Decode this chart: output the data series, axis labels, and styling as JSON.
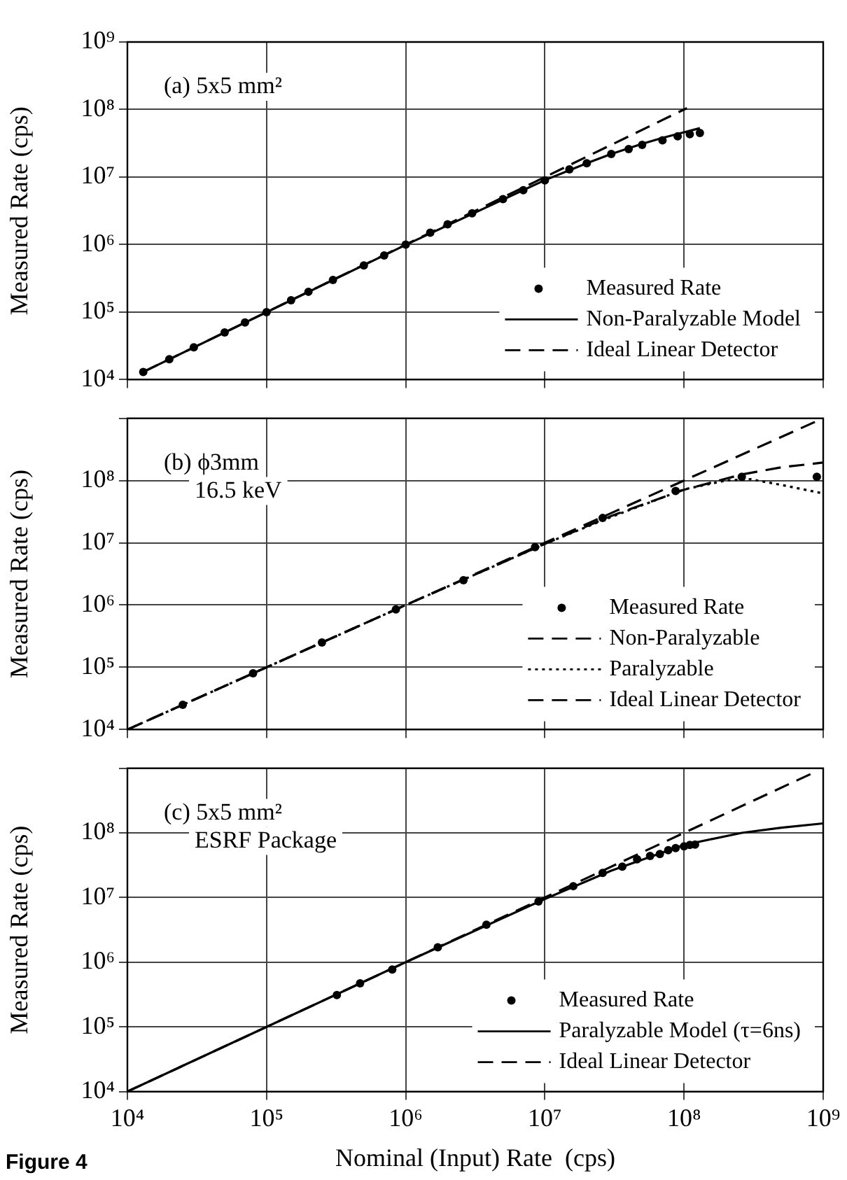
{
  "chart_data": [
    {
      "type": "line",
      "ylabel": "Measured Rate (cps)",
      "annotations": [
        "(a) 5x5 mm²"
      ],
      "log": "xy",
      "grid": true,
      "legend": "bottom right",
      "tick_labels": "y",
      "xlim": [
        10000,
        1000000000
      ],
      "xticks": [
        {
          "value": 10000,
          "label": null
        },
        {
          "value": 100000,
          "label": null
        },
        {
          "value": 1000000,
          "label": null
        },
        {
          "value": 10000000,
          "label": null
        },
        {
          "value": 100000000,
          "label": null
        },
        {
          "value": 1000000000,
          "label": null
        }
      ],
      "ylim": [
        10000,
        1000000000
      ],
      "yticks": [
        {
          "value": 10000,
          "label": "10⁴"
        },
        {
          "value": 100000,
          "label": "10⁵"
        },
        {
          "value": 1000000,
          "label": "10⁶"
        },
        {
          "value": 10000000,
          "label": "10⁷"
        },
        {
          "value": 100000000,
          "label": "10⁸"
        },
        {
          "value": 1000000000,
          "label": "10⁹"
        }
      ],
      "series": [
        {
          "name": "Measured Rate",
          "type": "scatter",
          "marker": "circle",
          "color": "#000000",
          "x": [
            13000,
            20000,
            30000,
            50000,
            70000,
            100000,
            150000,
            200000,
            300000,
            500000,
            700000,
            1000000,
            1500000,
            2000000,
            3000000,
            5000000,
            7000000,
            10000000,
            15000000,
            20000000,
            30000000,
            40000000,
            50000000,
            70000000,
            90000000,
            110000000,
            130000000
          ],
          "values": [
            13000,
            20000,
            30000,
            50000,
            70000,
            100000,
            150000,
            200000,
            300000,
            490000,
            690000,
            1000000,
            1500000,
            2000000,
            2900000,
            4700000,
            6400000,
            8900000,
            13000000,
            16000000,
            22000000,
            26000000,
            30000000,
            35000000,
            40000000,
            43000000,
            45000000
          ]
        },
        {
          "name": "Non-Paralyzable Model",
          "marker": "none",
          "line_style": "solid",
          "color": "#000000",
          "x": [
            13000,
            1000000,
            10000000,
            20000000,
            30000000,
            50000000,
            70000000,
            100000000,
            130000000
          ],
          "values": [
            13000,
            990000,
            9000000,
            16000000,
            22000000,
            31000000,
            38000000,
            46000000,
            53000000
          ]
        },
        {
          "name": "Ideal Linear Detector",
          "marker": "none",
          "line_style": "dashed",
          "color": "#000000",
          "x": [
            13000,
            105000000
          ],
          "values": [
            13000,
            105000000
          ]
        }
      ]
    },
    {
      "type": "line",
      "ylabel": "Measured Rate (cps)",
      "annotations": [
        "(b) ϕ3mm",
        "16.5 keV"
      ],
      "log": "xy",
      "grid": true,
      "legend": "bottom right",
      "tick_labels": "y",
      "xlim": [
        10000,
        1000000000
      ],
      "xticks": [
        {
          "value": 10000,
          "label": null
        },
        {
          "value": 100000,
          "label": null
        },
        {
          "value": 1000000,
          "label": null
        },
        {
          "value": 10000000,
          "label": null
        },
        {
          "value": 100000000,
          "label": null
        },
        {
          "value": 1000000000,
          "label": null
        }
      ],
      "ylim": [
        10000,
        1000000000
      ],
      "yticks": [
        {
          "value": 10000,
          "label": "10⁴"
        },
        {
          "value": 100000,
          "label": "10⁵"
        },
        {
          "value": 1000000,
          "label": "10⁶"
        },
        {
          "value": 10000000,
          "label": "10⁷"
        },
        {
          "value": 100000000,
          "label": "10⁸"
        },
        {
          "value": 1000000000,
          "label": null
        }
      ],
      "series": [
        {
          "name": "Measured Rate",
          "type": "scatter",
          "marker": "circle",
          "color": "#000000",
          "x": [
            25000,
            80000,
            250000,
            850000,
            2600000,
            8500000,
            26000000,
            87000000,
            260000000,
            900000000
          ],
          "values": [
            25000,
            80000,
            250000,
            850000,
            2500000,
            8500000,
            25000000,
            68000000,
            115000000,
            115000000
          ]
        },
        {
          "name": "Non-Paralyzable",
          "marker": "none",
          "line_style": "dashed",
          "color": "#000000",
          "x": [
            10000,
            100000,
            1000000,
            10000000,
            30000000,
            100000000,
            260000000,
            500000000,
            1000000000
          ],
          "values": [
            10000,
            100000,
            1000000,
            9600000,
            27000000,
            71000000,
            125000000,
            163000000,
            194000000
          ]
        },
        {
          "name": "Paralyzable",
          "marker": "none",
          "line_style": "dotted",
          "color": "#000000",
          "x": [
            10000,
            100000,
            1000000,
            10000000,
            30000000,
            100000000,
            200000000,
            300000000,
            500000000,
            1000000000
          ],
          "values": [
            10000,
            100000,
            1000000,
            9600000,
            26000000,
            72000000,
            100000000,
            105000000,
            85000000,
            62000000
          ]
        },
        {
          "name": "Ideal Linear Detector",
          "marker": "none",
          "line_style": "dashed",
          "color": "#000000",
          "x": [
            10000,
            900000000
          ],
          "values": [
            10000,
            900000000
          ]
        }
      ]
    },
    {
      "type": "line",
      "xlabel": "Nominal (Input) Rate  (cps)",
      "ylabel": "Measured Rate (cps)",
      "annotations": [
        "(c) 5x5 mm²",
        "ESRF Package",
        "Figure 4"
      ],
      "log": "xy",
      "grid": true,
      "legend": "bottom right",
      "xlim": [
        10000,
        1000000000
      ],
      "xticks": [
        {
          "value": 10000,
          "label": "10⁴"
        },
        {
          "value": 100000,
          "label": "10⁵"
        },
        {
          "value": 1000000,
          "label": "10⁶"
        },
        {
          "value": 10000000,
          "label": "10⁷"
        },
        {
          "value": 100000000,
          "label": "10⁸"
        },
        {
          "value": 1000000000,
          "label": "10⁹"
        }
      ],
      "ylim": [
        10000,
        1000000000
      ],
      "yticks": [
        {
          "value": 10000,
          "label": "10⁴"
        },
        {
          "value": 100000,
          "label": "10⁵"
        },
        {
          "value": 1000000,
          "label": "10⁶"
        },
        {
          "value": 10000000,
          "label": "10⁷"
        },
        {
          "value": 100000000,
          "label": "10⁸"
        },
        {
          "value": 1000000000,
          "label": null
        }
      ],
      "series": [
        {
          "name": "Measured Rate",
          "type": "scatter",
          "marker": "circle",
          "color": "#000000",
          "x": [
            320000,
            470000,
            800000,
            1700000,
            3800000,
            9000000,
            16000000,
            26000000,
            36000000,
            46000000,
            57000000,
            67000000,
            77000000,
            87000000,
            100000000,
            110000000,
            120000000
          ],
          "values": [
            310000,
            470000,
            770000,
            1700000,
            3800000,
            8700000,
            15000000,
            24000000,
            30000000,
            39000000,
            44000000,
            47000000,
            54000000,
            58000000,
            62000000,
            65000000,
            66000000
          ]
        },
        {
          "name": "Paralyzable Model (τ=6ns)",
          "marker": "none",
          "line_style": "solid",
          "color": "#000000",
          "x": [
            10000,
            100000,
            1000000,
            10000000,
            30000000,
            100000000,
            260000000,
            500000000,
            1000000000
          ],
          "values": [
            10000,
            100000,
            1000000,
            9500000,
            26000000,
            65000000,
            100000000,
            120000000,
            140000000
          ]
        },
        {
          "name": "Ideal Linear Detector",
          "marker": "none",
          "line_style": "dashed",
          "color": "#000000",
          "x": [
            10000,
            900000000
          ],
          "values": [
            10000,
            900000000
          ]
        }
      ]
    }
  ]
}
